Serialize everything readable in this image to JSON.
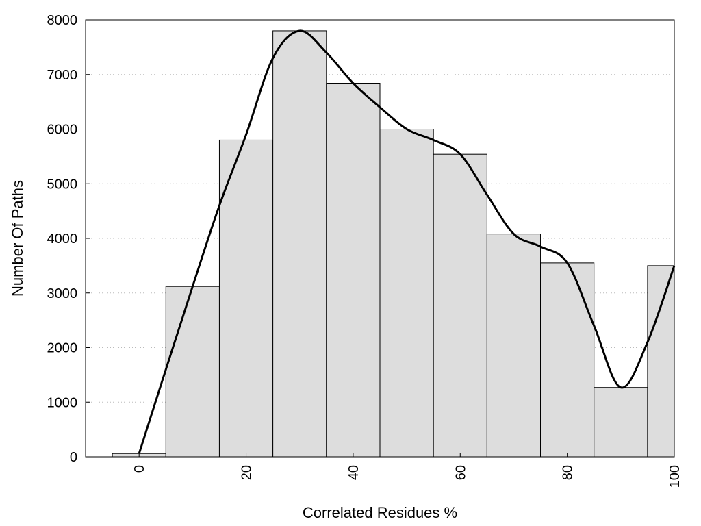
{
  "chart_data": {
    "type": "bar",
    "title": "",
    "xlabel": "Correlated Residues %",
    "ylabel": "Number Of Paths",
    "bin_width": 10,
    "x": [
      0,
      10,
      20,
      30,
      40,
      50,
      60,
      70,
      80,
      90,
      100
    ],
    "values": [
      60,
      3120,
      5800,
      7800,
      6840,
      6000,
      5540,
      4080,
      3550,
      1270,
      3500
    ],
    "xlim": [
      -10,
      100
    ],
    "ylim": [
      0,
      8000
    ],
    "x_ticks": [
      0,
      20,
      40,
      60,
      80,
      100
    ],
    "y_ticks": [
      0,
      1000,
      2000,
      3000,
      4000,
      5000,
      6000,
      7000,
      8000
    ],
    "y_grid": true,
    "legend": false,
    "bar_color": "#dddddd",
    "bar_edge_color": "#000000",
    "curve": {
      "type": "line",
      "smooth": true,
      "color": "#000000",
      "points": [
        [
          0,
          60
        ],
        [
          5,
          1600
        ],
        [
          10,
          3120
        ],
        [
          15,
          4600
        ],
        [
          20,
          5900
        ],
        [
          25,
          7300
        ],
        [
          30,
          7800
        ],
        [
          35,
          7400
        ],
        [
          40,
          6840
        ],
        [
          45,
          6400
        ],
        [
          50,
          6000
        ],
        [
          55,
          5800
        ],
        [
          60,
          5540
        ],
        [
          65,
          4800
        ],
        [
          70,
          4080
        ],
        [
          75,
          3850
        ],
        [
          80,
          3550
        ],
        [
          85,
          2400
        ],
        [
          90,
          1270
        ],
        [
          95,
          2100
        ],
        [
          100,
          3500
        ]
      ]
    }
  }
}
